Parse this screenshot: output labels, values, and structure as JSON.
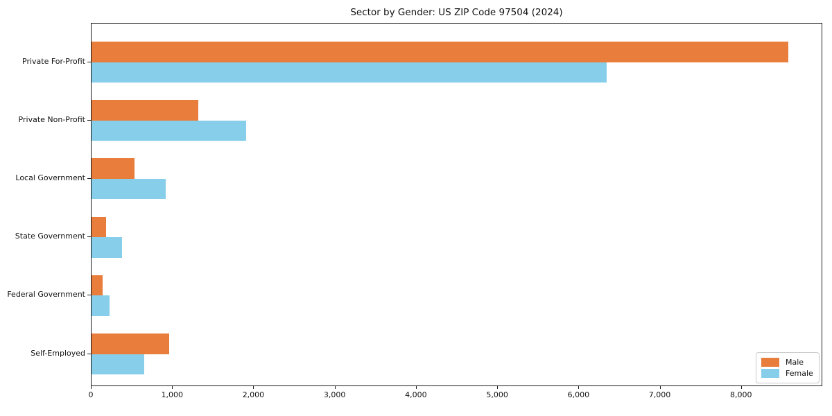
{
  "title": "Sector by Gender: US ZIP Code 97504 (2024)",
  "chart_data": {
    "type": "bar",
    "orientation": "horizontal",
    "title": "Sector by Gender: US ZIP Code 97504 (2024)",
    "xlabel": "",
    "ylabel": "",
    "categories": [
      "Private For-Profit",
      "Private Non-Profit",
      "Local Government",
      "State Government",
      "Federal Government",
      "Self-Employed"
    ],
    "series": [
      {
        "name": "Male",
        "color": "#E87D3C",
        "values": [
          8570,
          1315,
          530,
          180,
          140,
          955
        ]
      },
      {
        "name": "Female",
        "color": "#87CEEB",
        "values": [
          6335,
          1900,
          915,
          375,
          220,
          650
        ]
      }
    ],
    "xlim": [
      0,
      9000
    ],
    "xticks": [
      0,
      1000,
      2000,
      3000,
      4000,
      5000,
      6000,
      7000,
      8000
    ],
    "xtick_labels": [
      "0",
      "1,000",
      "2,000",
      "3,000",
      "4,000",
      "5,000",
      "6,000",
      "7,000",
      "8,000"
    ],
    "grid": false,
    "legend": {
      "position": "lower right",
      "entries": [
        "Male",
        "Female"
      ]
    },
    "frame_color": "#1a1a1a"
  }
}
